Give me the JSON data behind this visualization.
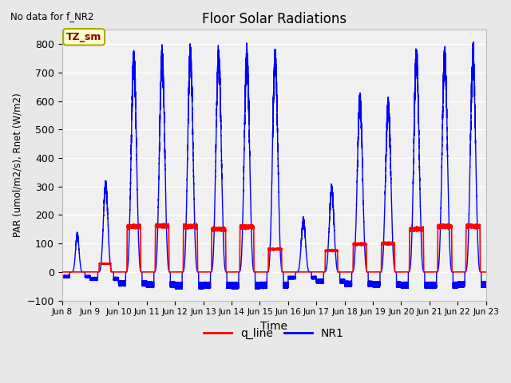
{
  "title": "Floor Solar Radiations",
  "subtitle": "No data for f_NR2",
  "xlabel": "Time",
  "ylabel": "PAR (umol/m2/s), Rnet (W/m2)",
  "ylim": [
    -100,
    850
  ],
  "q_line_color": "#FF0000",
  "NR1_color": "#0000FF",
  "background_color": "#E8E8E8",
  "plot_bg_color": "#F0F0F0",
  "legend_entries": [
    "q_line",
    "NR1"
  ],
  "tz_label": "TZ_sm",
  "tz_bg": "#FFFFCC",
  "tz_border": "#AAAA00",
  "yticks": [
    -100,
    0,
    100,
    200,
    300,
    400,
    500,
    600,
    700,
    800
  ],
  "xtick_labels": [
    "Jun 8",
    "Jun 9",
    "Jun 10",
    "Jun 11",
    "Jun 12",
    "Jun 13",
    "Jun 14",
    "Jun 15",
    "Jun 16",
    "Jun 17",
    "Jun 18",
    "Jun 19",
    "Jun 20",
    "Jun 21",
    "Jun 22",
    "Jun 23"
  ],
  "grid_color": "#FFFFFF",
  "linewidth_q": 1.2,
  "linewidth_nr1": 1.0,
  "figsize": [
    6.4,
    4.8
  ],
  "dpi": 100
}
